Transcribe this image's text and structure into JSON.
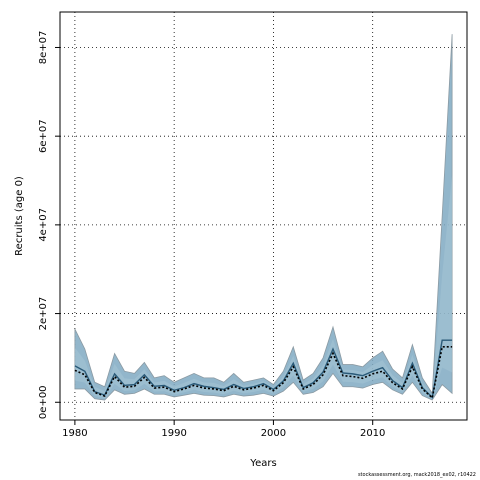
{
  "chart_data": {
    "type": "area",
    "xlabel": "Years",
    "ylabel": "Recruits (age 0)",
    "xlim": [
      1978.5,
      2019.5
    ],
    "ylim": [
      -4000000,
      88000000
    ],
    "xticks": [
      1980,
      1990,
      2000,
      2010
    ],
    "xtick_labels": [
      "1980",
      "1990",
      "2000",
      "2010"
    ],
    "yticks": [
      0,
      20000000,
      40000000,
      60000000,
      80000000
    ],
    "ytick_labels": [
      "0e+00",
      "2e+07",
      "4e+07",
      "6e+07",
      "8e+07"
    ],
    "grid": true,
    "legend": "none",
    "x": [
      1980,
      1981,
      1982,
      1983,
      1984,
      1985,
      1986,
      1987,
      1988,
      1989,
      1990,
      1991,
      1992,
      1993,
      1994,
      1995,
      1996,
      1997,
      1998,
      1999,
      2000,
      2001,
      2002,
      2003,
      2004,
      2005,
      2006,
      2007,
      2008,
      2009,
      2010,
      2011,
      2012,
      2013,
      2014,
      2015,
      2016,
      2017,
      2018
    ],
    "series": [
      {
        "role": "median",
        "color": "#0d0d3a",
        "values": [
          7200000,
          6200000,
          2200000,
          1400000,
          5800000,
          3400000,
          3600000,
          5600000,
          3200000,
          3400000,
          2400000,
          3000000,
          3800000,
          3200000,
          3000000,
          2600000,
          3600000,
          2800000,
          3200000,
          3800000,
          2600000,
          4400000,
          8000000,
          3000000,
          4000000,
          6200000,
          11000000,
          6000000,
          5800000,
          5400000,
          6400000,
          7000000,
          4400000,
          3000000,
          8000000,
          3000000,
          1000000,
          12500000,
          12500000
        ]
      },
      {
        "role": "upper",
        "color": "#8aaec4",
        "values": [
          16500000,
          12000000,
          4500000,
          3500000,
          11000000,
          7000000,
          6500000,
          9000000,
          5500000,
          6000000,
          4500000,
          5500000,
          6500000,
          5500000,
          5500000,
          4500000,
          6500000,
          4500000,
          5000000,
          5500000,
          4000000,
          7000000,
          12500000,
          5000000,
          6500000,
          10000000,
          17000000,
          8500000,
          8500000,
          8000000,
          10000000,
          11500000,
          7500000,
          5500000,
          13000000,
          5500000,
          2000000,
          42000000,
          83000000
        ]
      },
      {
        "role": "lower",
        "color": "#8aaec4",
        "values": [
          3000000,
          3000000,
          800000,
          500000,
          2800000,
          1800000,
          2000000,
          3000000,
          1800000,
          1800000,
          1200000,
          1600000,
          2000000,
          1600000,
          1500000,
          1200000,
          1800000,
          1400000,
          1600000,
          2000000,
          1400000,
          2500000,
          4500000,
          1800000,
          2200000,
          3500000,
          6500000,
          3500000,
          3500000,
          3200000,
          4000000,
          4500000,
          2800000,
          1800000,
          4500000,
          1500000,
          500000,
          4000000,
          2000000
        ]
      },
      {
        "role": "mean",
        "color": "#2a5a78",
        "values": [
          8200000,
          7000000,
          2400000,
          1600000,
          6400000,
          3800000,
          4000000,
          6200000,
          3600000,
          3800000,
          2700000,
          3300000,
          4200000,
          3600000,
          3300000,
          2900000,
          4000000,
          3100000,
          3500000,
          4200000,
          2900000,
          4800000,
          8800000,
          3300000,
          4400000,
          6800000,
          12000000,
          6600000,
          6400000,
          6000000,
          7000000,
          7800000,
          4900000,
          3300000,
          8800000,
          3300000,
          1100000,
          14000000,
          14000000
        ]
      }
    ]
  },
  "footer": {
    "text": "stockassessment.org, mack2018_ex02, r10422"
  },
  "colors": {
    "band_outer": "#7fa9c2",
    "band_inner": "#a9c8d8",
    "band_edge": "#8b9aa3",
    "median": "#000000",
    "mean": "#2a5a78",
    "grid": "#000000"
  }
}
